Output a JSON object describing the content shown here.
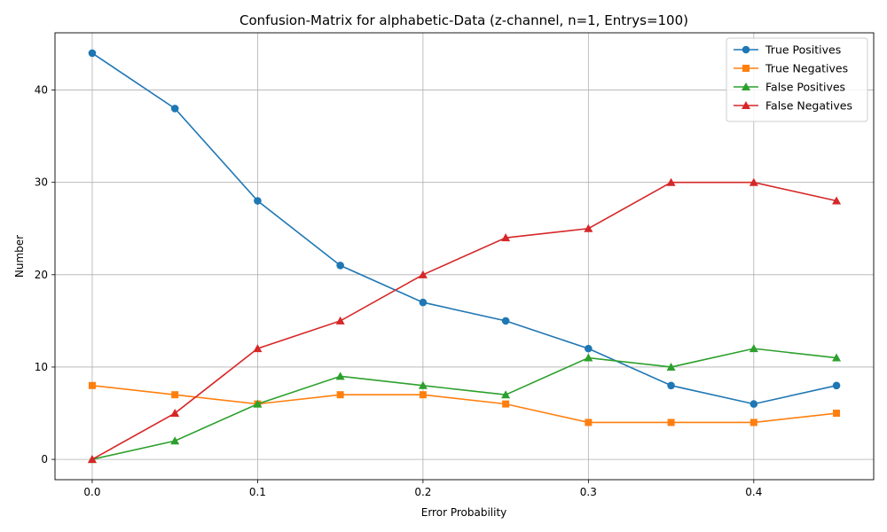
{
  "chart_data": {
    "type": "line",
    "title": "Confusion-Matrix for alphabetic-Data (z-channel, n=1, Entrys=100)",
    "xlabel": "Error Probability",
    "ylabel": "Number",
    "x": [
      0.0,
      0.05,
      0.1,
      0.15,
      0.2,
      0.25,
      0.3,
      0.35,
      0.4,
      0.45
    ],
    "xlim": [
      -0.0225,
      0.4725
    ],
    "ylim": [
      -2.2,
      46.2
    ],
    "xticks": [
      0.0,
      0.1,
      0.2,
      0.3,
      0.4
    ],
    "xtick_labels": [
      "0.0",
      "0.1",
      "0.2",
      "0.3",
      "0.4"
    ],
    "yticks": [
      0,
      10,
      20,
      30,
      40
    ],
    "ytick_labels": [
      "0",
      "10",
      "20",
      "30",
      "40"
    ],
    "grid": true,
    "legend_position": "top-right",
    "series": [
      {
        "name": "True Positives",
        "color": "#1f77b4",
        "marker": "circle",
        "values": [
          44,
          38,
          28,
          21,
          17,
          15,
          12,
          8,
          6,
          8
        ]
      },
      {
        "name": "True Negatives",
        "color": "#ff7f0e",
        "marker": "square",
        "values": [
          8,
          7,
          6,
          7,
          7,
          6,
          4,
          4,
          4,
          5
        ]
      },
      {
        "name": "False Positives",
        "color": "#2ca02c",
        "marker": "triangle",
        "values": [
          0,
          2,
          6,
          9,
          8,
          7,
          11,
          10,
          12,
          11
        ]
      },
      {
        "name": "False Negatives",
        "color": "#d62728",
        "marker": "triangle",
        "values": [
          0,
          5,
          12,
          15,
          20,
          24,
          25,
          30,
          30,
          28
        ]
      }
    ]
  }
}
